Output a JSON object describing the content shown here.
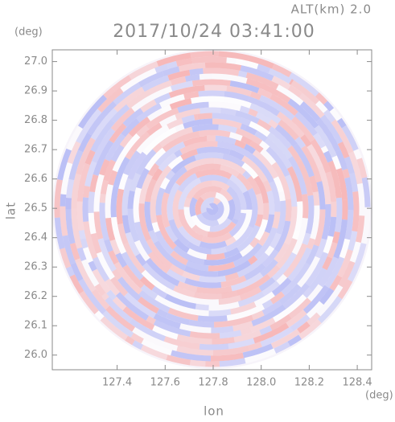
{
  "chart_data": {
    "type": "field",
    "title": "2017/10/24 03:41:00",
    "subtitle": "ALT(km) 2.0",
    "x_label": "lon",
    "y_label": "lat",
    "x_unit": "(deg)",
    "y_unit": "(deg)",
    "xlim": [
      127.13,
      128.46
    ],
    "ylim": [
      25.95,
      27.04
    ],
    "xticks": [
      {
        "value": 127.4,
        "label": "127.4"
      },
      {
        "value": 127.6,
        "label": "127.6"
      },
      {
        "value": 127.8,
        "label": "127.8"
      },
      {
        "value": 128.0,
        "label": "128.0"
      },
      {
        "value": 128.2,
        "label": "128.2"
      },
      {
        "value": 128.4,
        "label": "128.4"
      }
    ],
    "yticks": [
      {
        "value": 26.0,
        "label": "26.0"
      },
      {
        "value": 26.1,
        "label": "26.1"
      },
      {
        "value": 26.2,
        "label": "26.2"
      },
      {
        "value": 26.3,
        "label": "26.3"
      },
      {
        "value": 26.4,
        "label": "26.4"
      },
      {
        "value": 26.5,
        "label": "26.5"
      },
      {
        "value": 26.6,
        "label": "26.6"
      },
      {
        "value": 26.7,
        "label": "26.7"
      },
      {
        "value": 26.8,
        "label": "26.8"
      },
      {
        "value": 26.9,
        "label": "26.9"
      },
      {
        "value": 27.0,
        "label": "27.0"
      }
    ]
  }
}
